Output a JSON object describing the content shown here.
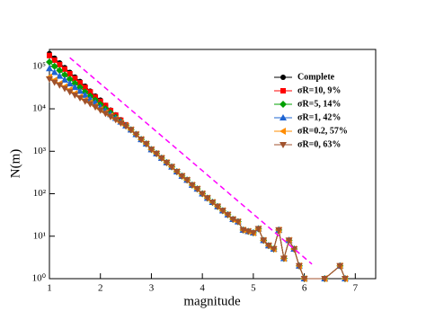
{
  "chart_data": {
    "type": "line",
    "x_label": "magnitude",
    "y_label": "N(m)",
    "yscale": "log",
    "xlim": [
      1,
      7.4
    ],
    "ylim": [
      1,
      250000
    ],
    "xticks": [
      1,
      2,
      3,
      4,
      5,
      6,
      7
    ],
    "yticks": [
      {
        "value": 1,
        "label": "10⁰"
      },
      {
        "value": 10,
        "label": "10¹"
      },
      {
        "value": 100,
        "label": "10²"
      },
      {
        "value": 1000,
        "label": "10³"
      },
      {
        "value": 10000,
        "label": "10⁴"
      },
      {
        "value": 100000,
        "label": "10⁵"
      }
    ],
    "x": [
      1.0,
      1.1,
      1.2,
      1.3,
      1.4,
      1.5,
      1.6,
      1.7,
      1.8,
      1.9,
      2.0,
      2.1,
      2.2,
      2.3,
      2.4,
      2.5,
      2.6,
      2.7,
      2.8,
      2.9,
      3.0,
      3.1,
      3.2,
      3.3,
      3.4,
      3.5,
      3.6,
      3.7,
      3.8,
      3.9,
      4.0,
      4.1,
      4.2,
      4.3,
      4.4,
      4.5,
      4.6,
      4.7,
      4.8,
      4.9,
      5.0,
      5.1,
      5.2,
      5.3,
      5.4,
      5.5,
      5.6,
      5.7,
      5.8,
      5.9,
      6.0,
      6.4,
      6.7,
      6.8
    ],
    "series": [
      {
        "name": "Complete",
        "color": "#000000",
        "marker": "circle",
        "values": [
          200000,
          155000,
          120000,
          93000,
          72000,
          56000,
          44000,
          34000,
          26000,
          20000,
          16000,
          12000,
          9300,
          7200,
          5500,
          4200,
          3200,
          2500,
          1900,
          1500,
          1100,
          880,
          690,
          540,
          430,
          330,
          260,
          210,
          160,
          130,
          100,
          79,
          63,
          50,
          40,
          32,
          25,
          22,
          14,
          13,
          12,
          15,
          8,
          6,
          5,
          14,
          3,
          8,
          5,
          2,
          1,
          1,
          2,
          1
        ]
      },
      {
        "name": "σR=10,   9%",
        "color": "#ff0000",
        "marker": "square",
        "values": [
          180000,
          140000,
          110000,
          86000,
          67000,
          52000,
          41000,
          32000,
          25000,
          19000,
          15000,
          12000,
          9100,
          7100,
          5400,
          4200,
          3200,
          2500,
          1900,
          1500,
          1100,
          880,
          690,
          540,
          430,
          330,
          260,
          210,
          160,
          130,
          100,
          79,
          63,
          50,
          40,
          32,
          25,
          22,
          14,
          13,
          12,
          15,
          8,
          6,
          5,
          14,
          3,
          8,
          5,
          2,
          1,
          1,
          2,
          1
        ]
      },
      {
        "name": "σR=5,    14%",
        "color": "#00a000",
        "marker": "diamond",
        "values": [
          126000,
          100000,
          80000,
          63000,
          50000,
          40000,
          32000,
          25000,
          20000,
          16000,
          12600,
          10000,
          8000,
          6300,
          5000,
          4000,
          3200,
          2500,
          1900,
          1500,
          1100,
          880,
          690,
          540,
          430,
          330,
          260,
          210,
          160,
          130,
          100,
          79,
          63,
          50,
          40,
          32,
          25,
          22,
          14,
          13,
          12,
          15,
          8,
          6,
          5,
          14,
          3,
          8,
          5,
          2,
          1,
          1,
          2,
          1
        ]
      },
      {
        "name": "σR=1,    42%",
        "color": "#1e64d2",
        "marker": "triangle-up",
        "values": [
          89000,
          72000,
          59000,
          48000,
          39000,
          32000,
          26000,
          21000,
          17000,
          14000,
          11000,
          9100,
          7400,
          6000,
          4900,
          4000,
          3200,
          2500,
          1900,
          1500,
          1100,
          880,
          690,
          540,
          430,
          330,
          260,
          210,
          160,
          130,
          100,
          79,
          63,
          50,
          40,
          32,
          25,
          22,
          14,
          13,
          12,
          15,
          8,
          6,
          5,
          14,
          3,
          8,
          5,
          2,
          1,
          1,
          2,
          1
        ]
      },
      {
        "name": "σR=0.2, 57%",
        "color": "#ff8c00",
        "marker": "triangle-left",
        "values": [
          56000,
          47000,
          39000,
          33000,
          28000,
          23000,
          19000,
          16000,
          14000,
          11500,
          9600,
          8100,
          6800,
          5700,
          4700,
          4000,
          3200,
          2500,
          1900,
          1500,
          1100,
          880,
          690,
          540,
          430,
          330,
          260,
          210,
          160,
          130,
          100,
          79,
          63,
          50,
          40,
          32,
          25,
          22,
          14,
          13,
          12,
          15,
          8,
          6,
          5,
          14,
          3,
          8,
          5,
          2,
          1,
          1,
          2,
          1
        ]
      },
      {
        "name": "σR=0,    63%",
        "color": "#a0522d",
        "marker": "triangle-down",
        "values": [
          50000,
          42000,
          36000,
          30000,
          25000,
          21000,
          18000,
          15000,
          13000,
          11000,
          9200,
          7700,
          6500,
          5500,
          4600,
          3900,
          3200,
          2500,
          1900,
          1500,
          1100,
          880,
          690,
          540,
          430,
          330,
          260,
          210,
          160,
          130,
          100,
          79,
          63,
          50,
          40,
          32,
          25,
          22,
          14,
          13,
          12,
          15,
          8,
          6,
          5,
          14,
          3,
          8,
          5,
          2,
          1,
          1,
          2,
          1
        ]
      }
    ],
    "reference_line": {
      "x": [
        1.4,
        6.15
      ],
      "values": [
        160000,
        2.2
      ],
      "color": "#ff00ff"
    }
  }
}
